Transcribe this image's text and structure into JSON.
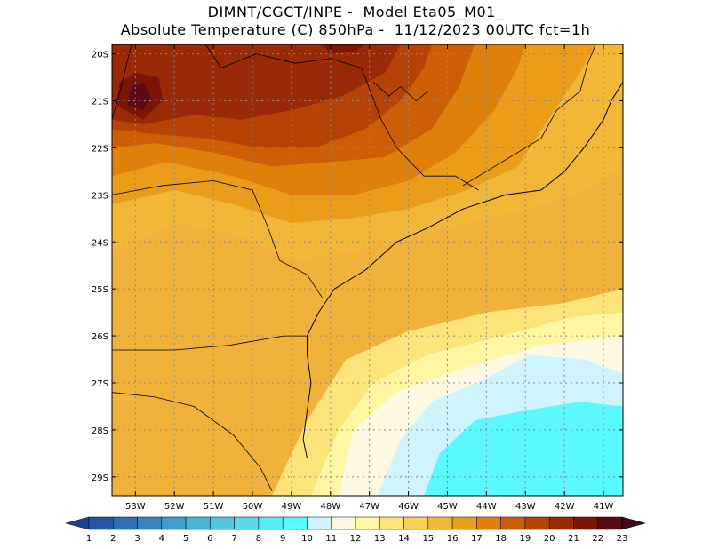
{
  "title": {
    "line1": "DIMNT/CGCT/INPE -  Model Eta05_M01_",
    "line2": "Absolute Temperature (C) 850hPa -  11/12/2023 00UTC fct=1h"
  },
  "map": {
    "lon_range": [
      -53.6,
      -40.5
    ],
    "lat_range": [
      -29.4,
      -19.8
    ],
    "lat_ticks": [
      {
        "lat": -20,
        "label": "20S"
      },
      {
        "lat": -21,
        "label": "21S"
      },
      {
        "lat": -22,
        "label": "22S"
      },
      {
        "lat": -23,
        "label": "23S"
      },
      {
        "lat": -24,
        "label": "24S"
      },
      {
        "lat": -25,
        "label": "25S"
      },
      {
        "lat": -26,
        "label": "26S"
      },
      {
        "lat": -27,
        "label": "27S"
      },
      {
        "lat": -28,
        "label": "28S"
      },
      {
        "lat": -29,
        "label": "29S"
      }
    ],
    "lon_ticks": [
      {
        "lon": -53,
        "label": "53W"
      },
      {
        "lon": -52,
        "label": "52W"
      },
      {
        "lon": -51,
        "label": "51W"
      },
      {
        "lon": -50,
        "label": "50W"
      },
      {
        "lon": -49,
        "label": "49W"
      },
      {
        "lon": -48,
        "label": "48W"
      },
      {
        "lon": -47,
        "label": "47W"
      },
      {
        "lon": -46,
        "label": "46W"
      },
      {
        "lon": -45,
        "label": "45W"
      },
      {
        "lon": -44,
        "label": "44W"
      },
      {
        "lon": -43,
        "label": "43W"
      },
      {
        "lon": -42,
        "label": "42W"
      },
      {
        "lon": -41,
        "label": "41W"
      }
    ],
    "temperature_zones": [
      {
        "level": 13,
        "points": [
          [
            -49.5,
            -29.4
          ],
          [
            -48.6,
            -27.8
          ],
          [
            -47.6,
            -26.5
          ],
          [
            -46.0,
            -25.9
          ],
          [
            -44.0,
            -25.5
          ],
          [
            -42.0,
            -25.3
          ],
          [
            -40.5,
            -25.0
          ],
          [
            -40.5,
            -29.4
          ]
        ]
      },
      {
        "level": 12,
        "points": [
          [
            -48.5,
            -29.4
          ],
          [
            -47.8,
            -28.0
          ],
          [
            -46.9,
            -27.0
          ],
          [
            -45.5,
            -26.4
          ],
          [
            -43.6,
            -26.0
          ],
          [
            -41.8,
            -25.6
          ],
          [
            -40.5,
            -25.5
          ],
          [
            -40.5,
            -29.4
          ]
        ]
      },
      {
        "level": 11,
        "points": [
          [
            -47.8,
            -29.4
          ],
          [
            -47.4,
            -28.0
          ],
          [
            -46.3,
            -27.2
          ],
          [
            -44.6,
            -26.7
          ],
          [
            -42.6,
            -26.2
          ],
          [
            -40.5,
            -26.0
          ],
          [
            -40.5,
            -29.4
          ]
        ]
      },
      {
        "level": 10,
        "points": [
          [
            -46.8,
            -29.4
          ],
          [
            -46.2,
            -28.2
          ],
          [
            -45.4,
            -27.4
          ],
          [
            -44.0,
            -26.9
          ],
          [
            -42.9,
            -26.4
          ],
          [
            -41.5,
            -26.5
          ],
          [
            -40.5,
            -26.8
          ],
          [
            -40.5,
            -29.4
          ]
        ]
      },
      {
        "level": 9,
        "points": [
          [
            -45.6,
            -29.4
          ],
          [
            -45.2,
            -28.5
          ],
          [
            -44.3,
            -27.8
          ],
          [
            -43.1,
            -27.6
          ],
          [
            -41.6,
            -27.4
          ],
          [
            -40.5,
            -27.5
          ],
          [
            -40.5,
            -29.4
          ]
        ]
      },
      {
        "level": 15,
        "points": [
          [
            -53.6,
            -24.2
          ],
          [
            -52.0,
            -23.6
          ],
          [
            -50.5,
            -23.8
          ],
          [
            -49.0,
            -24.4
          ],
          [
            -47.5,
            -24.2
          ],
          [
            -46.0,
            -23.9
          ],
          [
            -44.5,
            -23.6
          ],
          [
            -43.0,
            -23.3
          ],
          [
            -41.5,
            -22.9
          ],
          [
            -40.5,
            -22.4
          ],
          [
            -40.5,
            -19.8
          ],
          [
            -53.6,
            -19.8
          ]
        ]
      },
      {
        "level": 16,
        "points": [
          [
            -53.6,
            -23.2
          ],
          [
            -52.0,
            -22.9
          ],
          [
            -50.5,
            -23.2
          ],
          [
            -49.0,
            -23.6
          ],
          [
            -47.5,
            -23.5
          ],
          [
            -46.0,
            -23.3
          ],
          [
            -44.5,
            -22.9
          ],
          [
            -43.2,
            -22.4
          ],
          [
            -42.5,
            -21.5
          ],
          [
            -41.6,
            -20.4
          ],
          [
            -41.2,
            -19.8
          ],
          [
            -53.6,
            -19.8
          ]
        ]
      },
      {
        "level": 17,
        "points": [
          [
            -53.6,
            -22.6
          ],
          [
            -52.2,
            -22.3
          ],
          [
            -50.5,
            -22.6
          ],
          [
            -49.0,
            -23.0
          ],
          [
            -47.4,
            -23.0
          ],
          [
            -46.0,
            -22.7
          ],
          [
            -44.8,
            -22.1
          ],
          [
            -43.8,
            -21.2
          ],
          [
            -43.2,
            -20.3
          ],
          [
            -43.0,
            -19.8
          ],
          [
            -53.6,
            -19.8
          ]
        ]
      },
      {
        "level": 18,
        "points": [
          [
            -53.6,
            -22.0
          ],
          [
            -52.5,
            -21.9
          ],
          [
            -51.0,
            -22.1
          ],
          [
            -49.5,
            -22.4
          ],
          [
            -48.0,
            -22.3
          ],
          [
            -46.6,
            -22.2
          ],
          [
            -45.4,
            -21.6
          ],
          [
            -44.7,
            -20.7
          ],
          [
            -44.3,
            -19.8
          ],
          [
            -53.6,
            -19.8
          ]
        ]
      },
      {
        "level": 19,
        "points": [
          [
            -53.6,
            -21.6
          ],
          [
            -52.6,
            -21.7
          ],
          [
            -51.2,
            -21.8
          ],
          [
            -49.8,
            -22.0
          ],
          [
            -48.4,
            -22.0
          ],
          [
            -47.1,
            -21.6
          ],
          [
            -46.2,
            -21.0
          ],
          [
            -45.6,
            -20.3
          ],
          [
            -45.4,
            -19.8
          ],
          [
            -53.6,
            -19.8
          ]
        ]
      },
      {
        "level": 20,
        "points": [
          [
            -53.6,
            -21.4
          ],
          [
            -52.8,
            -21.5
          ],
          [
            -51.5,
            -21.3
          ],
          [
            -50.3,
            -21.4
          ],
          [
            -49.0,
            -21.2
          ],
          [
            -47.7,
            -20.9
          ],
          [
            -46.6,
            -20.4
          ],
          [
            -46.2,
            -19.8
          ],
          [
            -53.6,
            -19.8
          ]
        ]
      },
      {
        "level": 21,
        "points": [
          [
            -53.5,
            -21.1
          ],
          [
            -52.8,
            -21.4
          ],
          [
            -52.3,
            -21.0
          ],
          [
            -52.4,
            -20.5
          ],
          [
            -53.0,
            -20.4
          ],
          [
            -53.4,
            -20.6
          ]
        ]
      },
      {
        "level": 22,
        "points": [
          [
            -53.2,
            -21.1
          ],
          [
            -52.8,
            -21.2
          ],
          [
            -52.6,
            -20.9
          ],
          [
            -52.8,
            -20.6
          ],
          [
            -53.1,
            -20.7
          ]
        ]
      },
      {
        "level": 21,
        "points": [
          [
            -48.0,
            -20.0
          ],
          [
            -47.4,
            -19.95
          ],
          [
            -47.1,
            -19.8
          ],
          [
            -48.2,
            -19.8
          ]
        ]
      }
    ],
    "lines": [
      {
        "kind": "coastline",
        "points": [
          [
            -48.6,
            -28.6
          ],
          [
            -48.7,
            -28.2
          ],
          [
            -48.6,
            -27.6
          ],
          [
            -48.5,
            -27.0
          ],
          [
            -48.6,
            -26.4
          ],
          [
            -48.6,
            -26.0
          ],
          [
            -48.3,
            -25.5
          ],
          [
            -47.9,
            -25.0
          ],
          [
            -47.1,
            -24.6
          ],
          [
            -46.3,
            -24.0
          ],
          [
            -45.5,
            -23.7
          ],
          [
            -44.6,
            -23.3
          ],
          [
            -43.5,
            -23.0
          ],
          [
            -42.6,
            -22.9
          ],
          [
            -42.0,
            -22.5
          ],
          [
            -41.5,
            -22.0
          ],
          [
            -41.0,
            -21.4
          ],
          [
            -40.8,
            -21.0
          ],
          [
            -40.5,
            -20.6
          ]
        ]
      },
      {
        "kind": "border",
        "points": [
          [
            -53.6,
            -26.3
          ],
          [
            -52.0,
            -26.3
          ],
          [
            -50.6,
            -26.2
          ],
          [
            -49.2,
            -26.0
          ],
          [
            -48.6,
            -26.0
          ]
        ]
      },
      {
        "kind": "border",
        "points": [
          [
            -53.6,
            -27.2
          ],
          [
            -52.5,
            -27.3
          ],
          [
            -51.5,
            -27.5
          ],
          [
            -50.5,
            -28.1
          ],
          [
            -49.8,
            -28.8
          ],
          [
            -49.5,
            -29.3
          ]
        ]
      },
      {
        "kind": "border",
        "points": [
          [
            -53.6,
            -23.0
          ],
          [
            -52.3,
            -22.8
          ],
          [
            -51.0,
            -22.7
          ],
          [
            -50.0,
            -22.9
          ],
          [
            -49.6,
            -23.7
          ],
          [
            -49.3,
            -24.4
          ],
          [
            -48.6,
            -24.7
          ],
          [
            -48.2,
            -25.2
          ]
        ]
      },
      {
        "kind": "border",
        "points": [
          [
            -51.2,
            -19.8
          ],
          [
            -50.8,
            -20.3
          ],
          [
            -49.9,
            -20.0
          ],
          [
            -48.9,
            -20.2
          ],
          [
            -48.0,
            -20.1
          ],
          [
            -47.2,
            -20.3
          ],
          [
            -46.7,
            -21.4
          ],
          [
            -46.3,
            -22.0
          ],
          [
            -45.6,
            -22.6
          ],
          [
            -44.8,
            -22.6
          ],
          [
            -44.2,
            -22.9
          ]
        ]
      },
      {
        "kind": "border",
        "points": [
          [
            -44.6,
            -22.8
          ],
          [
            -43.6,
            -22.3
          ],
          [
            -42.6,
            -21.8
          ],
          [
            -42.2,
            -21.2
          ],
          [
            -41.6,
            -20.8
          ],
          [
            -41.4,
            -20.2
          ],
          [
            -41.2,
            -19.8
          ]
        ]
      },
      {
        "kind": "border",
        "points": [
          [
            -53.1,
            -19.8
          ],
          [
            -53.4,
            -20.8
          ],
          [
            -53.6,
            -21.4
          ]
        ]
      },
      {
        "kind": "lake",
        "points": [
          [
            -46.9,
            -20.6
          ],
          [
            -46.5,
            -20.9
          ],
          [
            -46.2,
            -20.7
          ],
          [
            -45.8,
            -21.0
          ],
          [
            -45.5,
            -20.8
          ]
        ]
      }
    ],
    "stipple_note": ""
  },
  "colorbar": {
    "labels": [
      "1",
      "2",
      "3",
      "4",
      "5",
      "6",
      "7",
      "8",
      "9",
      "10",
      "11",
      "12",
      "13",
      "14",
      "15",
      "16",
      "17",
      "18",
      "19",
      "20",
      "21",
      "22",
      "23"
    ],
    "colors": [
      "#1f3d8f",
      "#2356a6",
      "#2b6fb8",
      "#3686c4",
      "#3e9dce",
      "#48b3d6",
      "#52c6df",
      "#5cd9e8",
      "#58ecf4",
      "#5bf9fb",
      "#cff4fb",
      "#fdf8e4",
      "#fff6a3",
      "#fde47a",
      "#f8cf57",
      "#f2b737",
      "#ea9d19",
      "#e07f0a",
      "#cd5e05",
      "#b64305",
      "#9a2a06",
      "#7b1606",
      "#5c0b15",
      "#450a1a"
    ]
  }
}
